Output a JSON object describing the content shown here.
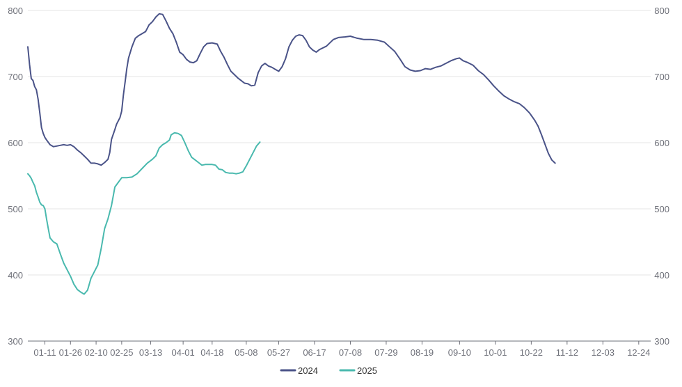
{
  "chart_data": {
    "type": "line",
    "x_tick_labels": [
      "01-11",
      "01-26",
      "02-10",
      "02-25",
      "03-13",
      "04-01",
      "04-18",
      "05-08",
      "05-27",
      "06-17",
      "07-08",
      "07-29",
      "08-19",
      "09-10",
      "10-01",
      "10-22",
      "11-12",
      "12-03",
      "12-24"
    ],
    "y_ticks": [
      300,
      400,
      500,
      600,
      700,
      800
    ],
    "y_tick_labels": [
      "300",
      "400",
      "500",
      "600",
      "700",
      "800"
    ],
    "ylim": [
      300,
      800
    ],
    "y_axes": "left-and-right",
    "grid": "horizontal",
    "legend_position": "bottom-center",
    "series": [
      {
        "name": "2024",
        "color": "#4a5388",
        "points": [
          [
            "01-01",
            745
          ],
          [
            "01-02",
            718
          ],
          [
            "01-03",
            697
          ],
          [
            "01-04",
            694
          ],
          [
            "01-05",
            685
          ],
          [
            "01-06",
            680
          ],
          [
            "01-07",
            666
          ],
          [
            "01-08",
            645
          ],
          [
            "01-09",
            623
          ],
          [
            "01-10",
            614
          ],
          [
            "01-11",
            608
          ],
          [
            "01-12",
            604
          ],
          [
            "01-14",
            597
          ],
          [
            "01-16",
            594
          ],
          [
            "01-18",
            595
          ],
          [
            "01-20",
            596
          ],
          [
            "01-22",
            597
          ],
          [
            "01-24",
            596
          ],
          [
            "01-26",
            597
          ],
          [
            "01-28",
            594
          ],
          [
            "01-30",
            589
          ],
          [
            "02-01",
            585
          ],
          [
            "02-03",
            580
          ],
          [
            "02-05",
            575
          ],
          [
            "02-07",
            569
          ],
          [
            "02-09",
            569
          ],
          [
            "02-11",
            568
          ],
          [
            "02-13",
            566
          ],
          [
            "02-15",
            570
          ],
          [
            "02-17",
            575
          ],
          [
            "02-18",
            585
          ],
          [
            "02-19",
            605
          ],
          [
            "02-21",
            620
          ],
          [
            "02-22",
            628
          ],
          [
            "02-24",
            638
          ],
          [
            "02-25",
            648
          ],
          [
            "02-26",
            672
          ],
          [
            "02-27",
            692
          ],
          [
            "02-28",
            712
          ],
          [
            "02-29",
            728
          ],
          [
            "03-02",
            745
          ],
          [
            "03-04",
            758
          ],
          [
            "03-06",
            762
          ],
          [
            "03-08",
            765
          ],
          [
            "03-10",
            768
          ],
          [
            "03-12",
            778
          ],
          [
            "03-14",
            783
          ],
          [
            "03-16",
            790
          ],
          [
            "03-18",
            795
          ],
          [
            "03-20",
            794
          ],
          [
            "03-22",
            784
          ],
          [
            "03-24",
            773
          ],
          [
            "03-26",
            765
          ],
          [
            "03-28",
            752
          ],
          [
            "03-30",
            737
          ],
          [
            "04-01",
            733
          ],
          [
            "04-03",
            726
          ],
          [
            "04-05",
            722
          ],
          [
            "04-07",
            721
          ],
          [
            "04-09",
            724
          ],
          [
            "04-11",
            735
          ],
          [
            "04-13",
            745
          ],
          [
            "04-15",
            750
          ],
          [
            "04-18",
            751
          ],
          [
            "04-21",
            749
          ],
          [
            "04-23",
            738
          ],
          [
            "04-25",
            729
          ],
          [
            "04-27",
            718
          ],
          [
            "04-29",
            708
          ],
          [
            "05-01",
            703
          ],
          [
            "05-03",
            698
          ],
          [
            "05-05",
            694
          ],
          [
            "05-07",
            690
          ],
          [
            "05-09",
            689
          ],
          [
            "05-11",
            686
          ],
          [
            "05-13",
            687
          ],
          [
            "05-15",
            706
          ],
          [
            "05-17",
            716
          ],
          [
            "05-19",
            720
          ],
          [
            "05-21",
            716
          ],
          [
            "05-23",
            714
          ],
          [
            "05-25",
            711
          ],
          [
            "05-27",
            708
          ],
          [
            "05-29",
            715
          ],
          [
            "05-31",
            727
          ],
          [
            "06-02",
            745
          ],
          [
            "06-04",
            755
          ],
          [
            "06-06",
            761
          ],
          [
            "06-08",
            763
          ],
          [
            "06-10",
            762
          ],
          [
            "06-12",
            755
          ],
          [
            "06-14",
            745
          ],
          [
            "06-16",
            740
          ],
          [
            "06-18",
            737
          ],
          [
            "06-20",
            741
          ],
          [
            "06-24",
            746
          ],
          [
            "06-28",
            756
          ],
          [
            "07-01",
            759
          ],
          [
            "07-05",
            760
          ],
          [
            "07-08",
            761
          ],
          [
            "07-12",
            758
          ],
          [
            "07-16",
            756
          ],
          [
            "07-20",
            756
          ],
          [
            "07-24",
            755
          ],
          [
            "07-28",
            752
          ],
          [
            "07-31",
            745
          ],
          [
            "08-03",
            738
          ],
          [
            "08-06",
            727
          ],
          [
            "08-09",
            715
          ],
          [
            "08-12",
            710
          ],
          [
            "08-15",
            708
          ],
          [
            "08-18",
            709
          ],
          [
            "08-21",
            712
          ],
          [
            "08-24",
            711
          ],
          [
            "08-27",
            714
          ],
          [
            "08-30",
            716
          ],
          [
            "09-02",
            720
          ],
          [
            "09-05",
            724
          ],
          [
            "09-08",
            727
          ],
          [
            "09-10",
            728
          ],
          [
            "09-12",
            724
          ],
          [
            "09-15",
            721
          ],
          [
            "09-18",
            717
          ],
          [
            "09-21",
            709
          ],
          [
            "09-24",
            703
          ],
          [
            "09-27",
            695
          ],
          [
            "09-30",
            686
          ],
          [
            "10-03",
            678
          ],
          [
            "10-06",
            671
          ],
          [
            "10-09",
            666
          ],
          [
            "10-12",
            662
          ],
          [
            "10-15",
            659
          ],
          [
            "10-18",
            653
          ],
          [
            "10-21",
            645
          ],
          [
            "10-24",
            634
          ],
          [
            "10-26",
            625
          ],
          [
            "10-28",
            612
          ],
          [
            "10-30",
            598
          ],
          [
            "11-01",
            584
          ],
          [
            "11-03",
            574
          ],
          [
            "11-05",
            569
          ]
        ]
      },
      {
        "name": "2025",
        "color": "#49b9ae",
        "points": [
          [
            "01-01",
            553
          ],
          [
            "01-02",
            550
          ],
          [
            "01-03",
            546
          ],
          [
            "01-04",
            540
          ],
          [
            "01-05",
            535
          ],
          [
            "01-06",
            525
          ],
          [
            "01-07",
            518
          ],
          [
            "01-08",
            510
          ],
          [
            "01-09",
            506
          ],
          [
            "01-10",
            505
          ],
          [
            "01-11",
            500
          ],
          [
            "01-12",
            484
          ],
          [
            "01-13",
            470
          ],
          [
            "01-14",
            456
          ],
          [
            "01-16",
            450
          ],
          [
            "01-18",
            447
          ],
          [
            "01-20",
            432
          ],
          [
            "01-22",
            418
          ],
          [
            "01-24",
            408
          ],
          [
            "01-26",
            398
          ],
          [
            "01-28",
            386
          ],
          [
            "01-30",
            378
          ],
          [
            "02-01",
            374
          ],
          [
            "02-03",
            371
          ],
          [
            "02-05",
            377
          ],
          [
            "02-07",
            395
          ],
          [
            "02-09",
            405
          ],
          [
            "02-11",
            415
          ],
          [
            "02-13",
            440
          ],
          [
            "02-15",
            470
          ],
          [
            "02-17",
            485
          ],
          [
            "02-19",
            505
          ],
          [
            "02-21",
            533
          ],
          [
            "02-23",
            540
          ],
          [
            "02-25",
            547
          ],
          [
            "02-28",
            547
          ],
          [
            "03-02",
            548
          ],
          [
            "03-05",
            553
          ],
          [
            "03-08",
            561
          ],
          [
            "03-11",
            569
          ],
          [
            "03-14",
            575
          ],
          [
            "03-16",
            580
          ],
          [
            "03-18",
            592
          ],
          [
            "03-20",
            597
          ],
          [
            "03-22",
            600
          ],
          [
            "03-24",
            604
          ],
          [
            "03-25",
            612
          ],
          [
            "03-27",
            615
          ],
          [
            "03-29",
            614
          ],
          [
            "03-31",
            611
          ],
          [
            "04-02",
            600
          ],
          [
            "04-04",
            588
          ],
          [
            "04-06",
            578
          ],
          [
            "04-08",
            574
          ],
          [
            "04-10",
            570
          ],
          [
            "04-12",
            566
          ],
          [
            "04-14",
            567
          ],
          [
            "04-16",
            567
          ],
          [
            "04-18",
            567
          ],
          [
            "04-20",
            566
          ],
          [
            "04-22",
            560
          ],
          [
            "04-24",
            559
          ],
          [
            "04-26",
            555
          ],
          [
            "04-28",
            554
          ],
          [
            "04-30",
            554
          ],
          [
            "05-02",
            553
          ],
          [
            "05-04",
            554
          ],
          [
            "05-06",
            556
          ],
          [
            "05-08",
            565
          ],
          [
            "05-10",
            575
          ],
          [
            "05-12",
            585
          ],
          [
            "05-14",
            595
          ],
          [
            "05-16",
            601
          ]
        ]
      }
    ]
  }
}
